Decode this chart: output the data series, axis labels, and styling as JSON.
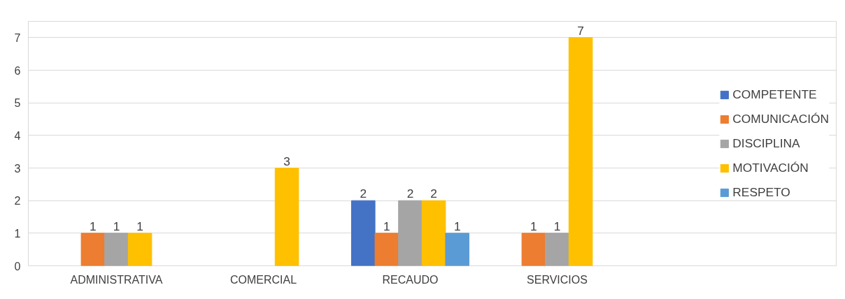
{
  "chart_data": {
    "type": "bar",
    "categories": [
      "ADMINISTRATIVA",
      "COMERCIAL",
      "RECAUDO",
      "SERVICIOS"
    ],
    "series": [
      {
        "name": "COMPETENTE",
        "color": "#4472c4",
        "values": [
          null,
          null,
          2,
          null
        ]
      },
      {
        "name": "COMUNICACIÓN",
        "color": "#ed7d31",
        "values": [
          1,
          null,
          1,
          1
        ]
      },
      {
        "name": "DISCIPLINA",
        "color": "#a5a5a5",
        "values": [
          1,
          null,
          2,
          1
        ]
      },
      {
        "name": "MOTIVACIÓN",
        "color": "#ffc000",
        "values": [
          1,
          3,
          2,
          7
        ]
      },
      {
        "name": "RESPETO",
        "color": "#5b9bd5",
        "values": [
          null,
          null,
          1,
          null
        ]
      }
    ],
    "ylim": [
      0,
      7.5
    ],
    "yticks": [
      0,
      1,
      2,
      3,
      4,
      5,
      6,
      7
    ],
    "grid": "y",
    "legend": "right",
    "data_labels": true
  }
}
